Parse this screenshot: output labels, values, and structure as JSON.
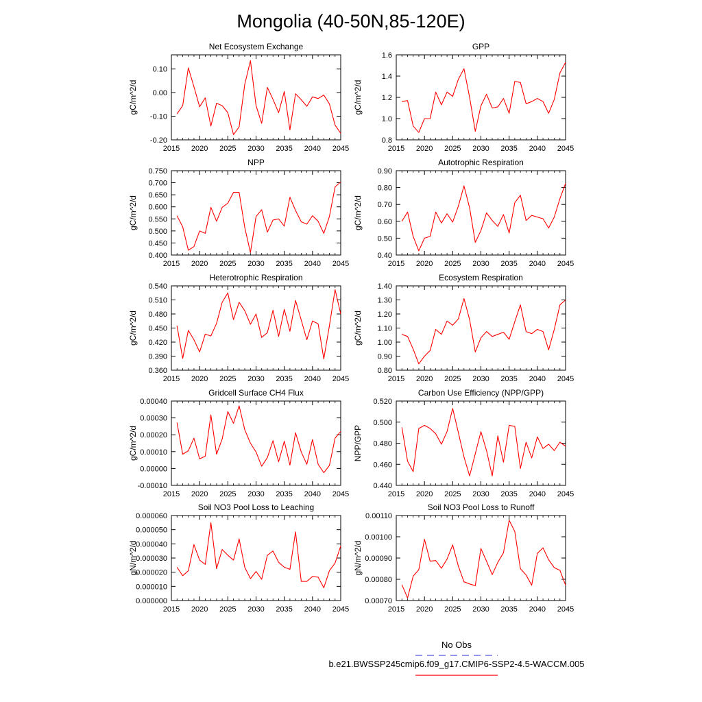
{
  "title": "Mongolia (40-50N,85-120E)",
  "colors": {
    "series": "#ff0000",
    "obs": "#5555dd",
    "axis": "#000000"
  },
  "legend": {
    "obs_label": "No Obs",
    "model_label": "b.e21.BWSSP245cmip6.f09_g17.CMIP6-SSP2-4.5-WACCM.005"
  },
  "chart_data": [
    {
      "type": "line",
      "title": "Net Ecosystem Exchange",
      "ylabel": "gC/m^2/d",
      "xlim": [
        2015,
        2045
      ],
      "ylim": [
        -0.2,
        0.16
      ],
      "xticks": [
        "2015",
        "2020",
        "2025",
        "2030",
        "2035",
        "2040",
        "2045"
      ],
      "yticks": [
        "-0.20",
        "-0.10",
        "0.00",
        "0.10"
      ],
      "x": [
        2016,
        2017,
        2018,
        2019,
        2020,
        2021,
        2022,
        2023,
        2024,
        2025,
        2026,
        2027,
        2028,
        2029,
        2030,
        2031,
        2032,
        2033,
        2034,
        2035,
        2036,
        2037,
        2038,
        2039,
        2040,
        2041,
        2042,
        2043,
        2044,
        2045
      ],
      "values": [
        -0.09,
        -0.055,
        0.105,
        0.025,
        -0.06,
        -0.022,
        -0.142,
        -0.045,
        -0.055,
        -0.085,
        -0.178,
        -0.145,
        0.035,
        0.135,
        -0.055,
        -0.13,
        0.022,
        -0.028,
        -0.085,
        0.005,
        -0.158,
        -0.005,
        -0.03,
        -0.058,
        -0.018,
        -0.025,
        -0.01,
        -0.048,
        -0.138,
        -0.172
      ]
    },
    {
      "type": "line",
      "title": "GPP",
      "ylabel": "gC/m^2/d",
      "xlim": [
        2015,
        2045
      ],
      "ylim": [
        0.8,
        1.6
      ],
      "xticks": [
        "2015",
        "2020",
        "2025",
        "2030",
        "2035",
        "2040",
        "2045"
      ],
      "yticks": [
        "0.8",
        "1.0",
        "1.2",
        "1.4",
        "1.6"
      ],
      "x": [
        2016,
        2017,
        2018,
        2019,
        2020,
        2021,
        2022,
        2023,
        2024,
        2025,
        2026,
        2027,
        2028,
        2029,
        2030,
        2031,
        2032,
        2033,
        2034,
        2035,
        2036,
        2037,
        2038,
        2039,
        2040,
        2041,
        2042,
        2043,
        2044,
        2045
      ],
      "values": [
        1.16,
        1.17,
        0.93,
        0.87,
        1.0,
        1.0,
        1.25,
        1.13,
        1.25,
        1.21,
        1.37,
        1.47,
        1.2,
        0.88,
        1.12,
        1.23,
        1.1,
        1.11,
        1.19,
        1.05,
        1.35,
        1.34,
        1.14,
        1.16,
        1.19,
        1.16,
        1.05,
        1.18,
        1.43,
        1.53
      ]
    },
    {
      "type": "line",
      "title": "NPP",
      "ylabel": "gC/m^2/d",
      "xlim": [
        2015,
        2045
      ],
      "ylim": [
        0.4,
        0.75
      ],
      "xticks": [
        "2015",
        "2020",
        "2025",
        "2030",
        "2035",
        "2040",
        "2045"
      ],
      "yticks": [
        "0.400",
        "0.450",
        "0.500",
        "0.550",
        "0.600",
        "0.650",
        "0.700",
        "0.750"
      ],
      "x": [
        2016,
        2017,
        2018,
        2019,
        2020,
        2021,
        2022,
        2023,
        2024,
        2025,
        2026,
        2027,
        2028,
        2029,
        2030,
        2031,
        2032,
        2033,
        2034,
        2035,
        2036,
        2037,
        2038,
        2039,
        2040,
        2041,
        2042,
        2043,
        2044,
        2045
      ],
      "values": [
        0.563,
        0.517,
        0.42,
        0.435,
        0.5,
        0.49,
        0.598,
        0.54,
        0.598,
        0.615,
        0.66,
        0.66,
        0.515,
        0.41,
        0.56,
        0.588,
        0.495,
        0.545,
        0.55,
        0.52,
        0.64,
        0.585,
        0.538,
        0.528,
        0.563,
        0.54,
        0.49,
        0.56,
        0.683,
        0.703
      ]
    },
    {
      "type": "line",
      "title": "Autotrophic Respiration",
      "ylabel": "gC/m^2/d",
      "xlim": [
        2015,
        2045
      ],
      "ylim": [
        0.4,
        0.9
      ],
      "xticks": [
        "2015",
        "2020",
        "2025",
        "2030",
        "2035",
        "2040",
        "2045"
      ],
      "yticks": [
        "0.40",
        "0.50",
        "0.60",
        "0.70",
        "0.80",
        "0.90"
      ],
      "x": [
        2016,
        2017,
        2018,
        2019,
        2020,
        2021,
        2022,
        2023,
        2024,
        2025,
        2026,
        2027,
        2028,
        2029,
        2030,
        2031,
        2032,
        2033,
        2034,
        2035,
        2036,
        2037,
        2038,
        2039,
        2040,
        2041,
        2042,
        2043,
        2044,
        2045
      ],
      "values": [
        0.6,
        0.655,
        0.51,
        0.425,
        0.5,
        0.51,
        0.655,
        0.59,
        0.645,
        0.595,
        0.69,
        0.81,
        0.68,
        0.475,
        0.545,
        0.65,
        0.605,
        0.57,
        0.64,
        0.53,
        0.71,
        0.755,
        0.605,
        0.635,
        0.625,
        0.615,
        0.56,
        0.625,
        0.735,
        0.825
      ]
    },
    {
      "type": "line",
      "title": "Heterotrophic Respiration",
      "ylabel": "gC/m^2/d",
      "xlim": [
        2015,
        2045
      ],
      "ylim": [
        0.36,
        0.54
      ],
      "xticks": [
        "2015",
        "2020",
        "2025",
        "2030",
        "2035",
        "2040",
        "2045"
      ],
      "yticks": [
        "0.360",
        "0.390",
        "0.420",
        "0.450",
        "0.480",
        "0.510",
        "0.540"
      ],
      "x": [
        2016,
        2017,
        2018,
        2019,
        2020,
        2021,
        2022,
        2023,
        2024,
        2025,
        2026,
        2027,
        2028,
        2029,
        2030,
        2031,
        2032,
        2033,
        2034,
        2035,
        2036,
        2037,
        2038,
        2039,
        2040,
        2041,
        2042,
        2043,
        2044,
        2045
      ],
      "values": [
        0.455,
        0.385,
        0.445,
        0.425,
        0.399,
        0.437,
        0.433,
        0.46,
        0.505,
        0.525,
        0.468,
        0.505,
        0.487,
        0.458,
        0.48,
        0.43,
        0.44,
        0.488,
        0.432,
        0.49,
        0.443,
        0.509,
        0.467,
        0.425,
        0.465,
        0.459,
        0.384,
        0.455,
        0.532,
        0.48
      ]
    },
    {
      "type": "line",
      "title": "Ecosystem Respiration",
      "ylabel": "gC/m^2/d",
      "xlim": [
        2015,
        2045
      ],
      "ylim": [
        0.8,
        1.4
      ],
      "xticks": [
        "2015",
        "2020",
        "2025",
        "2030",
        "2035",
        "2040",
        "2045"
      ],
      "yticks": [
        "0.80",
        "0.90",
        "1.00",
        "1.10",
        "1.20",
        "1.30",
        "1.40"
      ],
      "x": [
        2016,
        2017,
        2018,
        2019,
        2020,
        2021,
        2022,
        2023,
        2024,
        2025,
        2026,
        2027,
        2028,
        2029,
        2030,
        2031,
        2032,
        2033,
        2034,
        2035,
        2036,
        2037,
        2038,
        2039,
        2040,
        2041,
        2042,
        2043,
        2044,
        2045
      ],
      "values": [
        1.055,
        1.04,
        0.95,
        0.845,
        0.9,
        0.94,
        1.09,
        1.055,
        1.15,
        1.12,
        1.165,
        1.31,
        1.16,
        0.93,
        1.03,
        1.075,
        1.04,
        1.055,
        1.07,
        1.02,
        1.145,
        1.265,
        1.075,
        1.06,
        1.09,
        1.075,
        0.945,
        1.09,
        1.265,
        1.3
      ]
    },
    {
      "type": "line",
      "title": "Gridcell Surface CH4 Flux",
      "ylabel": "gC/m^2/d",
      "xlim": [
        2015,
        2045
      ],
      "ylim": [
        -0.0001,
        0.0004
      ],
      "xticks": [
        "2015",
        "2020",
        "2025",
        "2030",
        "2035",
        "2040",
        "2045"
      ],
      "yticks": [
        "-0.00010",
        "0.00000",
        "0.00010",
        "0.00020",
        "0.00030",
        "0.00040"
      ],
      "x": [
        2016,
        2017,
        2018,
        2019,
        2020,
        2021,
        2022,
        2023,
        2024,
        2025,
        2026,
        2027,
        2028,
        2029,
        2030,
        2031,
        2032,
        2033,
        2034,
        2035,
        2036,
        2037,
        2038,
        2039,
        2040,
        2041,
        2042,
        2043,
        2044,
        2045
      ],
      "values": [
        0.000272,
        8.5e-05,
        0.000105,
        0.00018,
        5.7e-05,
        7.3e-05,
        0.000318,
        8.5e-05,
        0.000175,
        0.000338,
        0.000268,
        0.000372,
        0.00023,
        0.00015,
        9.8e-05,
        1.3e-05,
        6.5e-05,
        0.000165,
        4e-05,
        0.000162,
        2e-05,
        0.000212,
        9.8e-05,
        2.5e-05,
        0.000172,
        2.5e-05,
        -2.5e-05,
        1.8e-05,
        0.00018,
        0.00022
      ]
    },
    {
      "type": "line",
      "title": "Carbon Use Efficiency (NPP/GPP)",
      "ylabel": "NPP/GPP",
      "xlim": [
        2015,
        2045
      ],
      "ylim": [
        0.44,
        0.52
      ],
      "xticks": [
        "2015",
        "2020",
        "2025",
        "2030",
        "2035",
        "2040",
        "2045"
      ],
      "yticks": [
        "0.440",
        "0.460",
        "0.480",
        "0.500",
        "0.520"
      ],
      "x": [
        2016,
        2017,
        2018,
        2019,
        2020,
        2021,
        2022,
        2023,
        2024,
        2025,
        2026,
        2027,
        2028,
        2029,
        2030,
        2031,
        2032,
        2033,
        2034,
        2035,
        2036,
        2037,
        2038,
        2039,
        2040,
        2041,
        2042,
        2043,
        2044,
        2045
      ],
      "values": [
        0.495,
        0.463,
        0.453,
        0.494,
        0.497,
        0.494,
        0.489,
        0.479,
        0.491,
        0.513,
        0.49,
        0.467,
        0.449,
        0.47,
        0.491,
        0.473,
        0.449,
        0.487,
        0.462,
        0.497,
        0.496,
        0.456,
        0.481,
        0.466,
        0.486,
        0.475,
        0.479,
        0.473,
        0.481,
        0.477
      ]
    },
    {
      "type": "line",
      "title": "Soil NO3 Pool Loss to Leaching",
      "ylabel": "gN/m^2/d",
      "xlim": [
        2015,
        2045
      ],
      "ylim": [
        0.0,
        6e-05
      ],
      "xticks": [
        "2015",
        "2020",
        "2025",
        "2030",
        "2035",
        "2040",
        "2045"
      ],
      "yticks": [
        "0.000000",
        "0.000010",
        "0.000020",
        "0.000030",
        "0.000040",
        "0.000050",
        "0.000060"
      ],
      "x": [
        2016,
        2017,
        2018,
        2019,
        2020,
        2021,
        2022,
        2023,
        2024,
        2025,
        2026,
        2027,
        2028,
        2029,
        2030,
        2031,
        2032,
        2033,
        2034,
        2035,
        2036,
        2037,
        2038,
        2039,
        2040,
        2041,
        2042,
        2043,
        2044,
        2045
      ],
      "values": [
        2.35e-05,
        1.75e-05,
        2.1e-05,
        3.95e-05,
        2.85e-05,
        2.55e-05,
        5.5e-05,
        2.25e-05,
        3.6e-05,
        3.2e-05,
        2.85e-05,
        4.35e-05,
        2.35e-05,
        1.55e-05,
        2.05e-05,
        1.5e-05,
        3.2e-05,
        3.5e-05,
        2.7e-05,
        2.35e-05,
        2.2e-05,
        4.85e-05,
        1.35e-05,
        1.35e-05,
        1.7e-05,
        1.65e-05,
        9e-06,
        2.1e-05,
        2.65e-05,
        3.85e-05
      ]
    },
    {
      "type": "line",
      "title": "Soil NO3 Pool Loss to Runoff",
      "ylabel": "gN/m^2/d",
      "xlim": [
        2015,
        2045
      ],
      "ylim": [
        0.0007,
        0.0011
      ],
      "xticks": [
        "2015",
        "2020",
        "2025",
        "2030",
        "2035",
        "2040",
        "2045"
      ],
      "yticks": [
        "0.00070",
        "0.00080",
        "0.00090",
        "0.00100",
        "0.00110"
      ],
      "x": [
        2016,
        2017,
        2018,
        2019,
        2020,
        2021,
        2022,
        2023,
        2024,
        2025,
        2026,
        2027,
        2028,
        2029,
        2030,
        2031,
        2032,
        2033,
        2034,
        2035,
        2036,
        2037,
        2038,
        2039,
        2040,
        2041,
        2042,
        2043,
        2044,
        2045
      ],
      "values": [
        0.000775,
        0.000712,
        0.000815,
        0.000845,
        0.000988,
        0.000885,
        0.000888,
        0.000852,
        0.000895,
        0.000962,
        0.000862,
        0.000788,
        0.000778,
        0.00077,
        0.000945,
        0.000885,
        0.000822,
        0.00088,
        0.000925,
        0.001078,
        0.001025,
        0.00085,
        0.00082,
        0.000772,
        0.000922,
        0.000948,
        0.000892,
        0.000855,
        0.000842,
        0.000772
      ]
    }
  ]
}
